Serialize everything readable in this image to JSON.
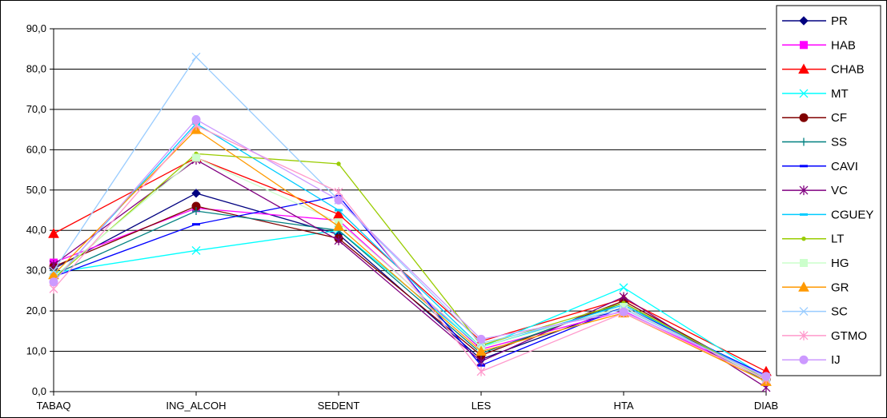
{
  "chart_data": {
    "type": "line",
    "title": "",
    "xlabel": "",
    "ylabel": "",
    "categories": [
      "TABAQ",
      "ING_ALCOH",
      "SEDENT",
      "LES",
      "HTA",
      "DIAB"
    ],
    "ylim": [
      0,
      90
    ],
    "yticks": [
      "0,0",
      "10,0",
      "20,0",
      "30,0",
      "40,0",
      "50,0",
      "60,0",
      "70,0",
      "80,0",
      "90,0"
    ],
    "grid": true,
    "legend_position": "right",
    "series": [
      {
        "name": "PR",
        "color": "#000080",
        "marker": "diamond",
        "values": [
          30.5,
          49.2,
          39.0,
          8.0,
          21.0,
          3.0
        ]
      },
      {
        "name": "HAB",
        "color": "#ff00ff",
        "marker": "square",
        "values": [
          32.0,
          45.5,
          42.5,
          10.5,
          20.0,
          3.0
        ]
      },
      {
        "name": "CHAB",
        "color": "#ff0000",
        "marker": "triangle",
        "values": [
          39.2,
          58.0,
          44.0,
          12.5,
          23.0,
          5.0
        ]
      },
      {
        "name": "MT",
        "color": "#00ffff",
        "marker": "x",
        "values": [
          29.5,
          35.0,
          40.0,
          11.0,
          25.8,
          3.5
        ]
      },
      {
        "name": "CF",
        "color": "#800000",
        "marker": "circle",
        "values": [
          31.0,
          46.0,
          38.0,
          9.0,
          22.5,
          3.0
        ]
      },
      {
        "name": "SS",
        "color": "#008080",
        "marker": "plus",
        "values": [
          29.0,
          44.8,
          40.0,
          9.5,
          22.0,
          2.5
        ]
      },
      {
        "name": "CAVI",
        "color": "#0000ff",
        "marker": "dash",
        "values": [
          28.5,
          41.5,
          48.5,
          6.5,
          21.0,
          4.0
        ]
      },
      {
        "name": "VC",
        "color": "#800080",
        "marker": "star",
        "values": [
          31.5,
          57.5,
          37.5,
          7.5,
          23.5,
          1.0
        ]
      },
      {
        "name": "CGUEY",
        "color": "#00ccff",
        "marker": "dash",
        "values": [
          27.5,
          66.5,
          45.0,
          11.0,
          21.5,
          3.5
        ]
      },
      {
        "name": "LT",
        "color": "#99cc00",
        "marker": "dot",
        "values": [
          28.0,
          59.0,
          56.5,
          11.5,
          22.0,
          3.0
        ]
      },
      {
        "name": "HG",
        "color": "#ccffcc",
        "marker": "square",
        "values": [
          28.5,
          58.0,
          42.0,
          11.0,
          21.0,
          3.0
        ]
      },
      {
        "name": "GR",
        "color": "#ff9900",
        "marker": "triangle",
        "values": [
          29.0,
          65.0,
          41.0,
          10.0,
          19.5,
          2.5
        ]
      },
      {
        "name": "SC",
        "color": "#99ccff",
        "marker": "x",
        "values": [
          30.0,
          83.0,
          47.5,
          12.0,
          20.5,
          3.5
        ]
      },
      {
        "name": "GTMO",
        "color": "#ff99cc",
        "marker": "star",
        "values": [
          25.5,
          66.0,
          49.5,
          5.0,
          19.5,
          3.0
        ]
      },
      {
        "name": "IJ",
        "color": "#cc99ff",
        "marker": "circle",
        "values": [
          27.2,
          67.5,
          47.5,
          13.0,
          19.8,
          3.8
        ]
      }
    ]
  }
}
